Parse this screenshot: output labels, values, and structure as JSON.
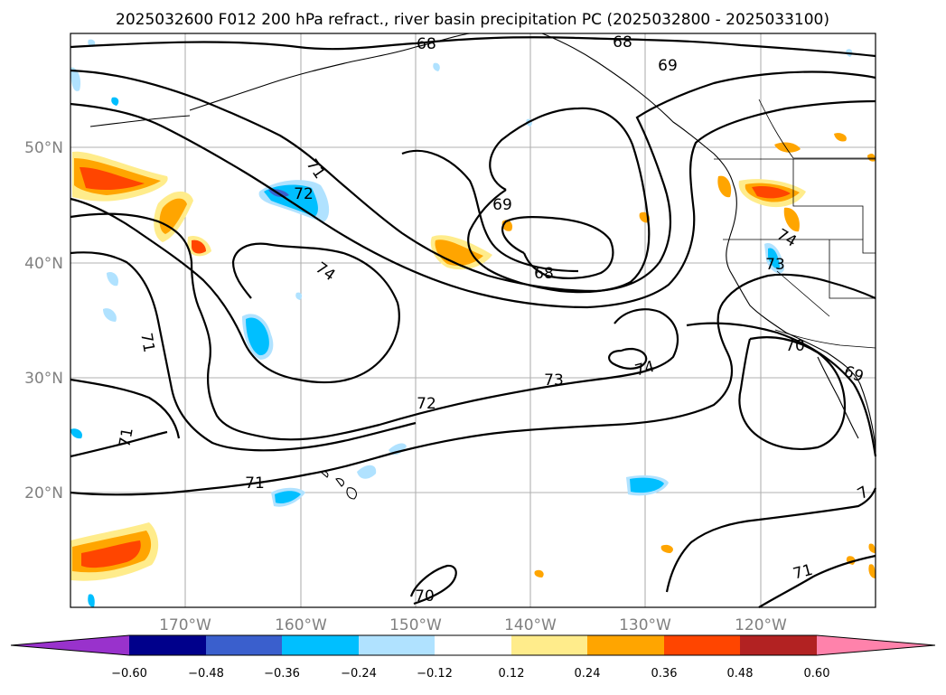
{
  "title": "2025032600 F012 200 hPa refract., river basin precipitation PC (2025032800 - 2025033100)",
  "lat_labels": [
    "50°N",
    "40°N",
    "30°N",
    "20°N"
  ],
  "lon_labels": [
    "170°W",
    "160°W",
    "150°W",
    "140°W",
    "130°W",
    "120°W"
  ],
  "contour_labels": [
    "68",
    "68",
    "69",
    "69",
    "68",
    "71",
    "72",
    "74",
    "71",
    "71",
    "71",
    "73",
    "72",
    "74",
    "70",
    "71",
    "70",
    "69",
    "74",
    "73",
    "71",
    "7"
  ],
  "colorbar": {
    "ticks": [
      "−0.60",
      "−0.48",
      "−0.36",
      "−0.24",
      "−0.12",
      "0.12",
      "0.24",
      "0.36",
      "0.48",
      "0.60"
    ],
    "colors": [
      "#9932CC",
      "#00008B",
      "#3A5FCD",
      "#00BFFF",
      "#B0E2FF",
      "#FFFFFF",
      "#FFEC8B",
      "#FFA500",
      "#FF4500",
      "#B22222",
      "#FF82AB"
    ]
  }
}
